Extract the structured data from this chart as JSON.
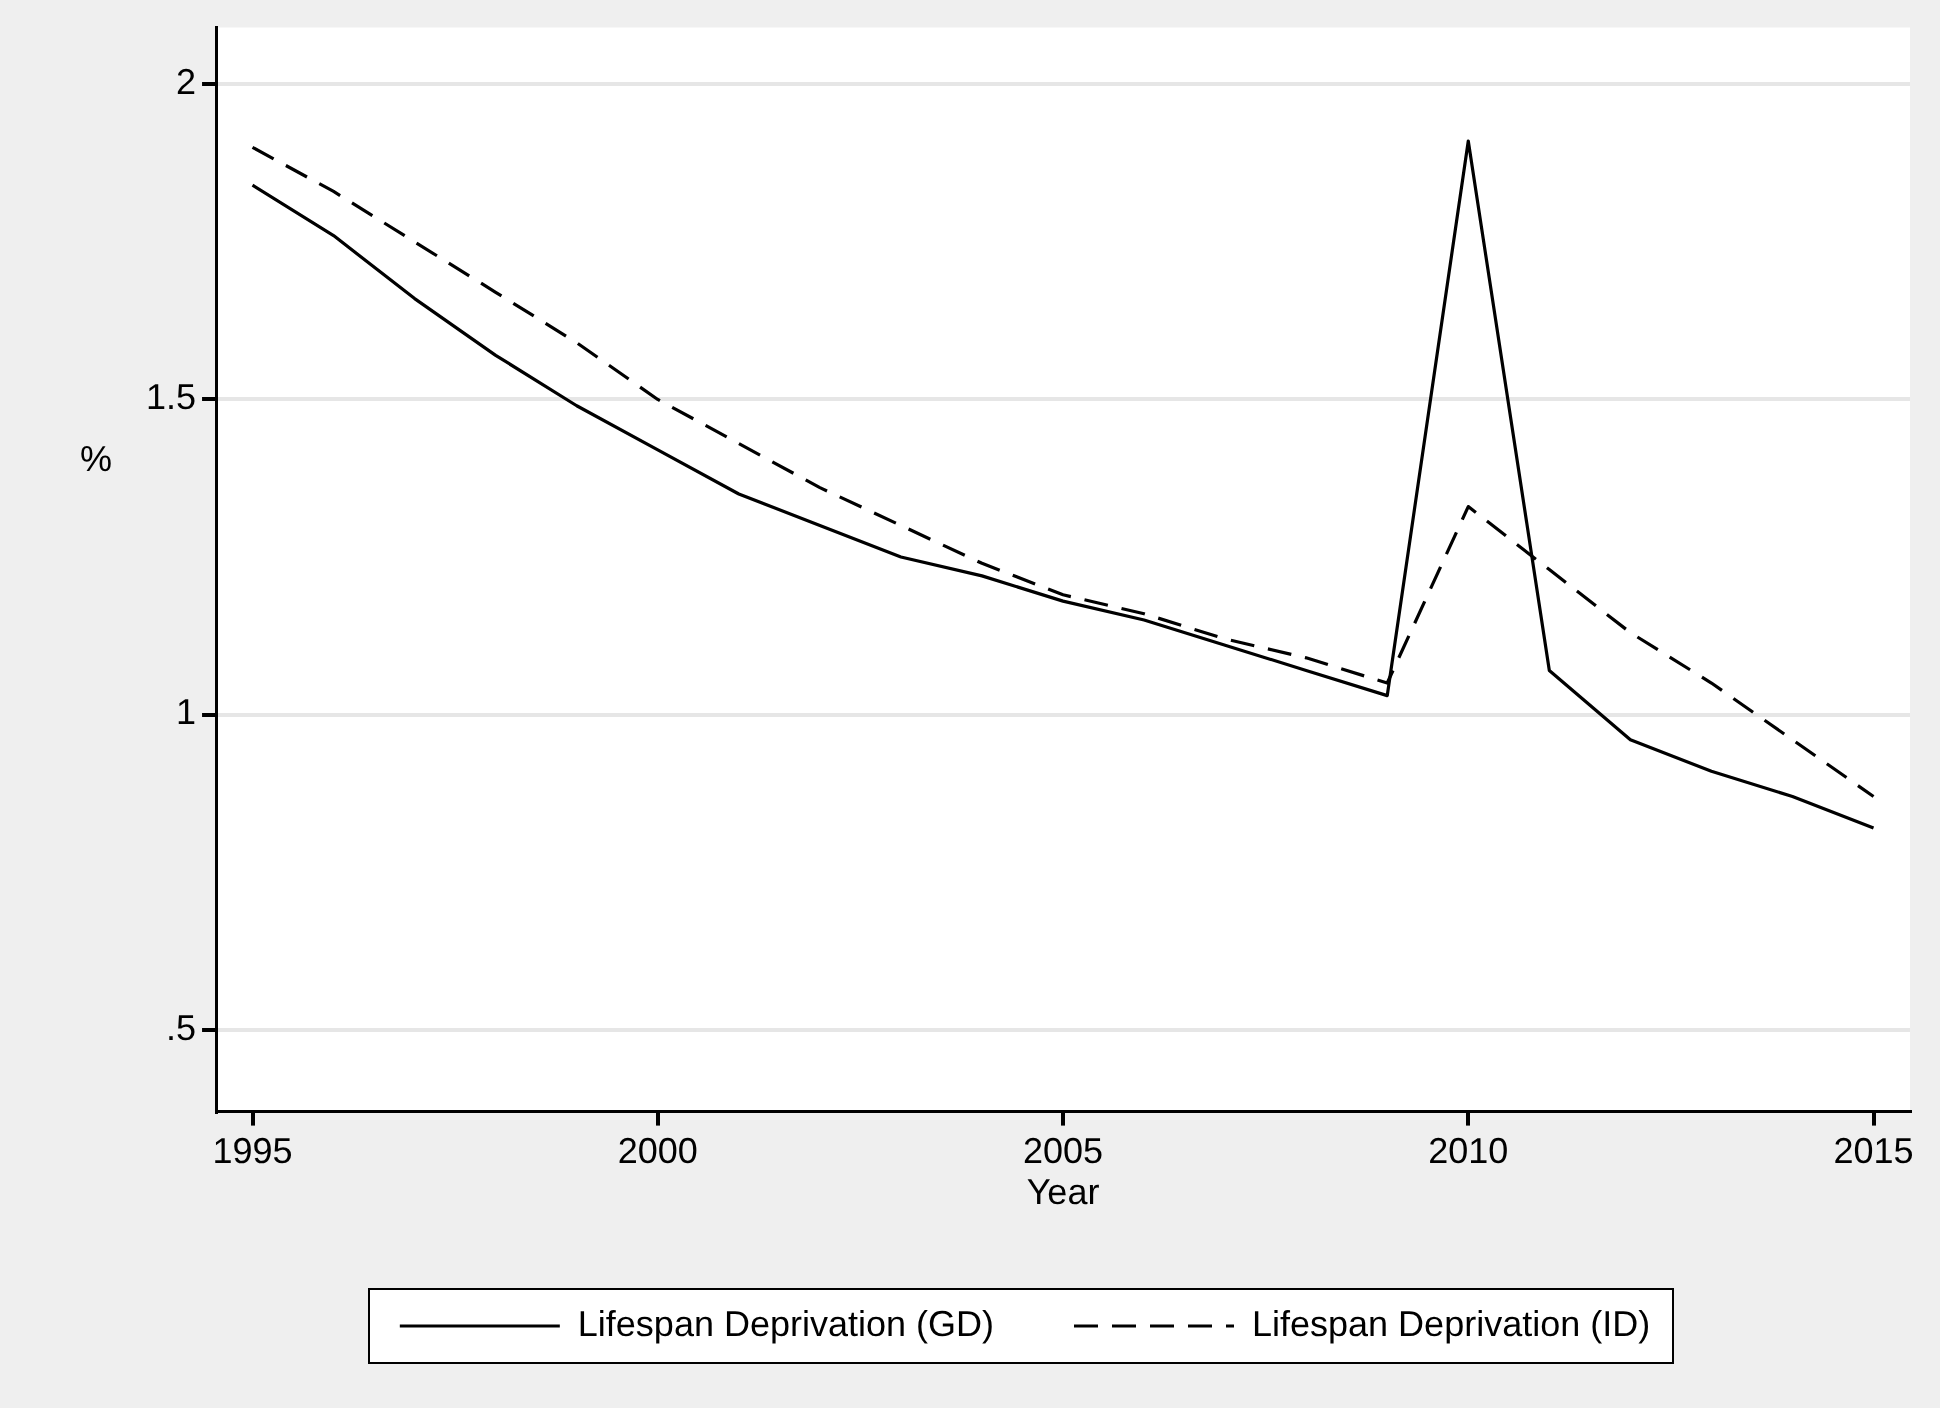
{
  "chart_data": {
    "type": "line",
    "xlabel": "Year",
    "ylabel": "%",
    "x": [
      1995,
      1996,
      1997,
      1998,
      1999,
      2000,
      2001,
      2002,
      2003,
      2004,
      2005,
      2006,
      2007,
      2008,
      2009,
      2010,
      2011,
      2012,
      2013,
      2014,
      2015
    ],
    "series": [
      {
        "name": "Lifespan Deprivation (GD)",
        "color": "#000000",
        "line_style": "solid",
        "values": [
          1.84,
          1.76,
          1.66,
          1.57,
          1.49,
          1.42,
          1.35,
          1.3,
          1.25,
          1.22,
          1.18,
          1.15,
          1.11,
          1.07,
          1.03,
          1.91,
          1.07,
          0.96,
          0.91,
          0.87,
          0.82
        ]
      },
      {
        "name": "Lifespan Deprivation (ID)",
        "color": "#000000",
        "line_style": "dashed",
        "values": [
          1.9,
          1.83,
          1.75,
          1.67,
          1.59,
          1.5,
          1.43,
          1.36,
          1.3,
          1.24,
          1.19,
          1.16,
          1.12,
          1.09,
          1.05,
          1.33,
          1.23,
          1.13,
          1.05,
          0.96,
          0.87
        ]
      }
    ],
    "xlim": [
      1994.55,
      2015.45
    ],
    "xticks": [
      1995,
      2000,
      2005,
      2010,
      2015
    ],
    "ylim": [
      0.37,
      2.09
    ],
    "yticks": [
      {
        "value": 0.5,
        "label": ".5"
      },
      1,
      1.5,
      2
    ],
    "grid": "y",
    "legend": "bottom",
    "marker": "none"
  }
}
